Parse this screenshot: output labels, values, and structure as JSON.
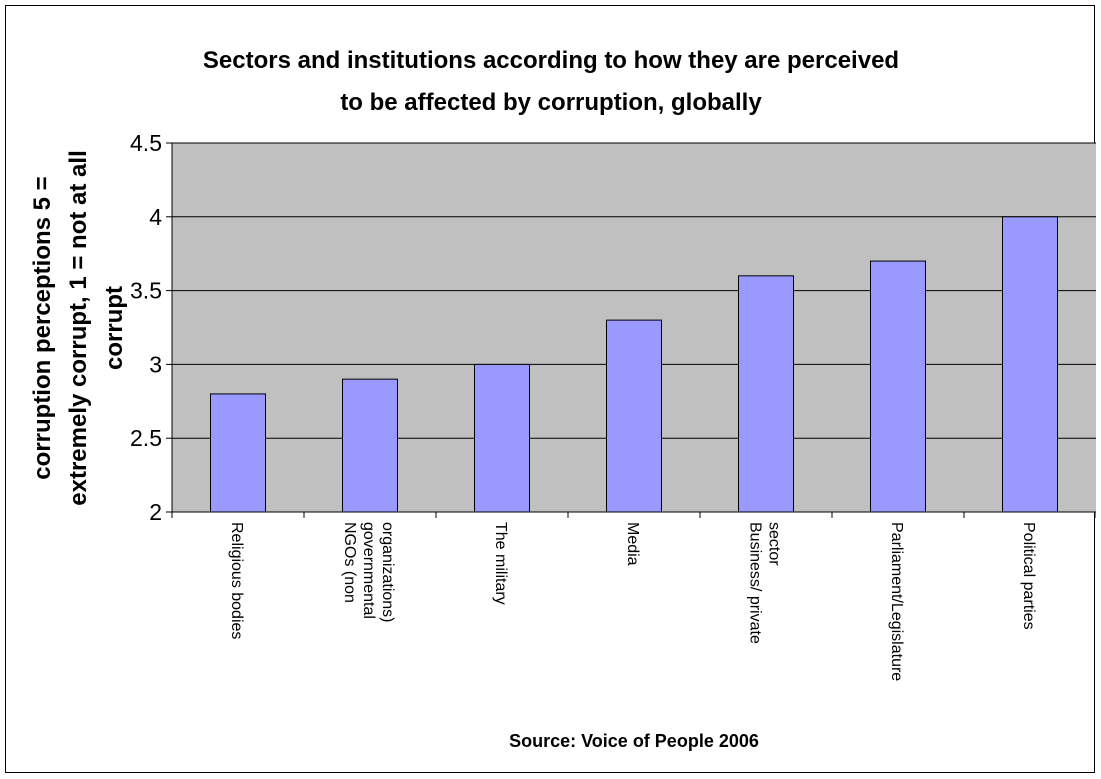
{
  "chart_data": {
    "type": "bar",
    "title_lines": [
      "Sectors and institutions according to how they are perceived",
      "to be affected by corruption, globally"
    ],
    "ylabel_lines": [
      "corruption perceptions 5 =",
      "extremely corrupt, 1 = not at all",
      "corrupt"
    ],
    "xlabel": "Source: Voice of People 2006",
    "categories": [
      [
        "Religious bodies"
      ],
      [
        "NGOs (non",
        "governmental",
        "organizations)"
      ],
      [
        "The military"
      ],
      [
        "Media"
      ],
      [
        "Business/ private",
        "sector"
      ],
      [
        "Parliament/Legislature"
      ],
      [
        "Political parties"
      ]
    ],
    "values": [
      2.8,
      2.9,
      3.0,
      3.3,
      3.6,
      3.7,
      4.0
    ],
    "ylim": [
      2,
      4.5
    ],
    "yticks": [
      "2",
      "2.5",
      "3",
      "3.5",
      "4",
      "4.5"
    ],
    "grid": true,
    "colors": {
      "plot_bg": "#c0c0c0",
      "bar_fill": "#9999ff",
      "bar_stroke": "#000000",
      "grid": "#000000"
    }
  }
}
